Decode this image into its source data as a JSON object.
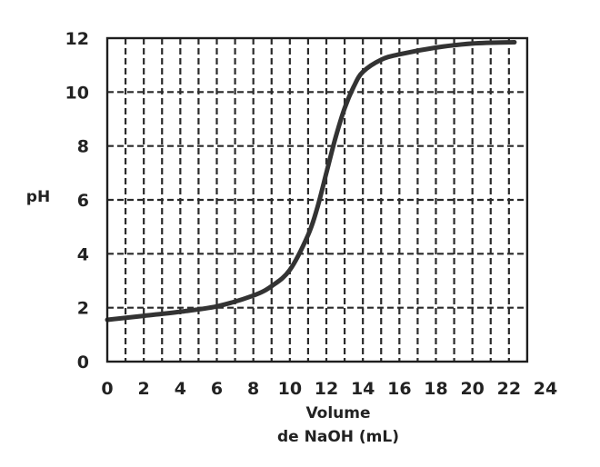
{
  "chart_data": {
    "type": "line",
    "title": "",
    "ylabel": "pH",
    "xlabel_line1": "Volume",
    "xlabel_line2": "de NaOH (mL)",
    "xlim": [
      0,
      24
    ],
    "ylim": [
      0,
      12
    ],
    "x_ticks": [
      "0",
      "2",
      "4",
      "6",
      "8",
      "10",
      "12",
      "14",
      "16",
      "18",
      "20",
      "22",
      "24"
    ],
    "y_ticks": [
      "0",
      "2",
      "4",
      "6",
      "8",
      "10",
      "12"
    ],
    "grid": true,
    "series": [
      {
        "x": [
          0,
          2,
          4,
          6,
          8,
          9,
          10,
          11,
          11.5,
          12,
          12.5,
          13,
          13.5,
          14,
          15,
          16,
          18,
          20,
          22.3
        ],
        "y": [
          1.55,
          1.7,
          1.85,
          2.05,
          2.45,
          2.8,
          3.4,
          4.7,
          5.7,
          7.0,
          8.3,
          9.4,
          10.2,
          10.75,
          11.2,
          11.4,
          11.65,
          11.8,
          11.85
        ]
      }
    ]
  }
}
